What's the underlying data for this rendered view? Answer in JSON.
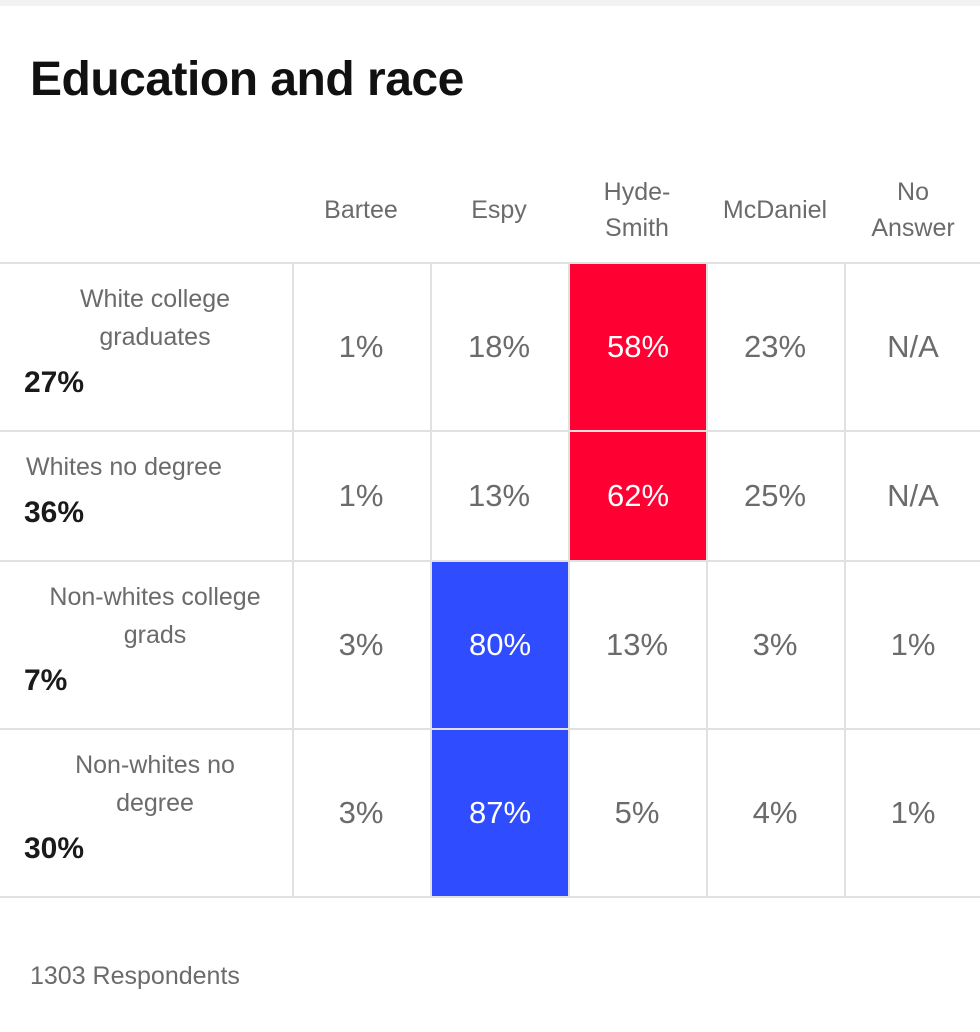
{
  "chart_data": {
    "type": "table",
    "title": "Education and race",
    "columns": [
      "Bartee",
      "Espy",
      "Hyde-\nSmith",
      "McDaniel",
      "No\nAnswer"
    ],
    "rows": [
      {
        "label": "White college graduates",
        "label_lines": [
          "White college",
          "graduates"
        ],
        "share": "27%",
        "values": [
          "1%",
          "18%",
          "58%",
          "23%",
          "N/A"
        ],
        "winner": 2
      },
      {
        "label": "Whites no degree",
        "label_lines": [
          "Whites no degree"
        ],
        "share": "36%",
        "values": [
          "1%",
          "13%",
          "62%",
          "25%",
          "N/A"
        ],
        "winner": 2
      },
      {
        "label": "Non-whites college grads",
        "label_lines": [
          "Non-whites college",
          "grads"
        ],
        "share": "7%",
        "values": [
          "3%",
          "80%",
          "13%",
          "3%",
          "1%"
        ],
        "winner": 1
      },
      {
        "label": "Non-whites no degree",
        "label_lines": [
          "Non-whites no",
          "degree"
        ],
        "share": "30%",
        "values": [
          "3%",
          "87%",
          "5%",
          "4%",
          "1%"
        ],
        "winner": 1
      }
    ],
    "colors": {
      "republican": "#ff0033",
      "democrat": "#2f4dff"
    },
    "footer": "1303 Respondents"
  }
}
